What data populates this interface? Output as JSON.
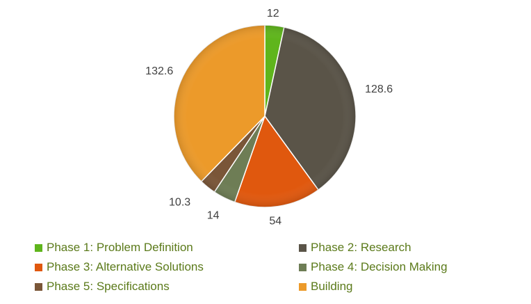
{
  "chart_data": {
    "type": "pie",
    "title": "",
    "categories": [
      "Phase 1: Problem Definition",
      "Phase 2: Research",
      "Phase 3: Alternative Solutions",
      "Phase 4: Decision Making",
      "Phase 5: Specifications",
      "Building"
    ],
    "values": [
      12,
      128.6,
      54,
      14,
      10.3,
      132.6
    ],
    "data_labels": [
      "12",
      "128.6",
      "54",
      "14",
      "10.3",
      "132.6"
    ],
    "colors": [
      "#5fb51c",
      "#5a5448",
      "#e0580e",
      "#6e7d55",
      "#7a5638",
      "#ec9a2a"
    ],
    "legend_placement": "bottom",
    "start_angle": "top, clockwise"
  }
}
